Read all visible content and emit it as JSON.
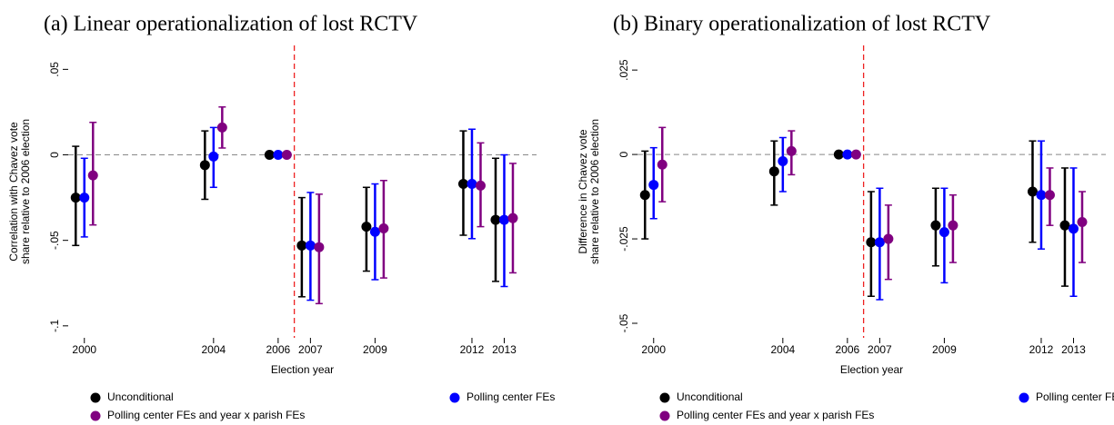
{
  "chart_data": [
    {
      "type": "errorbar",
      "title": "(a) Linear operationalization of lost RCTV",
      "xlabel": "Election year",
      "ylabel": [
        "Correlation with Chavez vote",
        "share relative to 2006 election"
      ],
      "x": [
        2000,
        2004,
        2006,
        2007,
        2009,
        2012,
        2013
      ],
      "xticks": [
        2000,
        2004,
        2006,
        2007,
        2009,
        2012,
        2013
      ],
      "xlim": [
        1999.5,
        2014
      ],
      "ylim": [
        -0.107,
        0.064
      ],
      "yticks": [
        {
          "value": -0.1,
          "label": "-.1"
        },
        {
          "value": -0.05,
          "label": "-.05"
        },
        0,
        {
          "value": 0.05,
          "label": ".05"
        }
      ],
      "hline": 0,
      "vline": 2006.5,
      "legend": "bottom",
      "series": [
        {
          "name": "Unconditional",
          "color": "#000000",
          "values": [
            -0.025,
            -0.006,
            0,
            -0.053,
            -0.042,
            -0.017,
            -0.038
          ],
          "lower": [
            -0.053,
            -0.026,
            0,
            -0.083,
            -0.068,
            -0.047,
            -0.074
          ],
          "upper": [
            0.005,
            0.014,
            0,
            -0.025,
            -0.019,
            0.014,
            -0.002
          ]
        },
        {
          "name": "Polling center FEs",
          "color": "#0000ff",
          "values": [
            -0.025,
            -0.001,
            0,
            -0.053,
            -0.045,
            -0.017,
            -0.038
          ],
          "lower": [
            -0.048,
            -0.019,
            0,
            -0.085,
            -0.073,
            -0.049,
            -0.077
          ],
          "upper": [
            -0.002,
            0.016,
            0,
            -0.022,
            -0.017,
            0.015,
            0
          ]
        },
        {
          "name": "Polling center FEs and year x parish FEs",
          "color": "#800080",
          "values": [
            -0.012,
            0.016,
            0,
            -0.054,
            -0.043,
            -0.018,
            -0.037
          ],
          "lower": [
            -0.041,
            0.004,
            0,
            -0.087,
            -0.072,
            -0.042,
            -0.069
          ],
          "upper": [
            0.019,
            0.028,
            0,
            -0.023,
            -0.015,
            0.007,
            -0.005
          ]
        }
      ]
    },
    {
      "type": "errorbar",
      "title": "(b) Binary operationalization of lost RCTV",
      "xlabel": "Election year",
      "ylabel": [
        "Difference in Chavez vote",
        "share relative to 2006 election"
      ],
      "x": [
        2000,
        2004,
        2006,
        2007,
        2009,
        2012,
        2013
      ],
      "xticks": [
        2000,
        2004,
        2006,
        2007,
        2009,
        2012,
        2013
      ],
      "xlim": [
        1999.5,
        2014
      ],
      "ylim": [
        -0.0543,
        0.0323
      ],
      "yticks": [
        {
          "value": -0.05,
          "label": "-.05"
        },
        {
          "value": -0.025,
          "label": "-.025"
        },
        0,
        {
          "value": 0.025,
          "label": ".025"
        }
      ],
      "hline": 0,
      "vline": 2006.5,
      "legend": "bottom",
      "series": [
        {
          "name": "Unconditional",
          "color": "#000000",
          "values": [
            -0.012,
            -0.005,
            0,
            -0.026,
            -0.021,
            -0.011,
            -0.021
          ],
          "lower": [
            -0.025,
            -0.015,
            0,
            -0.042,
            -0.033,
            -0.026,
            -0.039
          ],
          "upper": [
            0.001,
            0.004,
            0,
            -0.011,
            -0.01,
            0.004,
            -0.004
          ]
        },
        {
          "name": "Polling center FEs",
          "color": "#0000ff",
          "values": [
            -0.009,
            -0.002,
            0,
            -0.026,
            -0.023,
            -0.012,
            -0.022
          ],
          "lower": [
            -0.019,
            -0.011,
            0,
            -0.043,
            -0.038,
            -0.028,
            -0.042
          ],
          "upper": [
            0.002,
            0.005,
            0,
            -0.01,
            -0.01,
            0.004,
            -0.004
          ]
        },
        {
          "name": "Polling center FEs and year x parish FEs",
          "color": "#800080",
          "values": [
            -0.003,
            0.001,
            0,
            -0.025,
            -0.021,
            -0.012,
            -0.02
          ],
          "lower": [
            -0.014,
            -0.006,
            0,
            -0.037,
            -0.032,
            -0.021,
            -0.032
          ],
          "upper": [
            0.008,
            0.007,
            0,
            -0.015,
            -0.012,
            -0.004,
            -0.011
          ]
        }
      ]
    }
  ]
}
